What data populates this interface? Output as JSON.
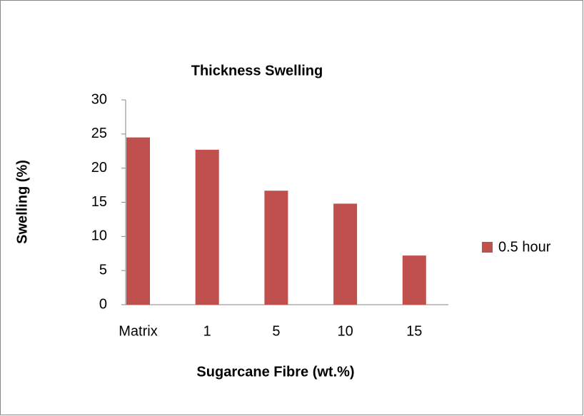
{
  "chart_data": {
    "type": "bar",
    "title": "Thickness Swelling",
    "x_label": "Sugarcane Fibre (wt.%)",
    "y_label": "Swelling (%)",
    "categories": [
      "Matrix",
      "1",
      "5",
      "10",
      "15"
    ],
    "series": [
      {
        "name": "0.5 hour",
        "color": "#c0504d",
        "values": [
          24.5,
          22.7,
          16.7,
          14.8,
          7.2
        ]
      }
    ],
    "ylim": [
      0,
      30
    ],
    "yticks": [
      0,
      5,
      10,
      15,
      20,
      25,
      30
    ],
    "grid": false,
    "legend": "right"
  }
}
